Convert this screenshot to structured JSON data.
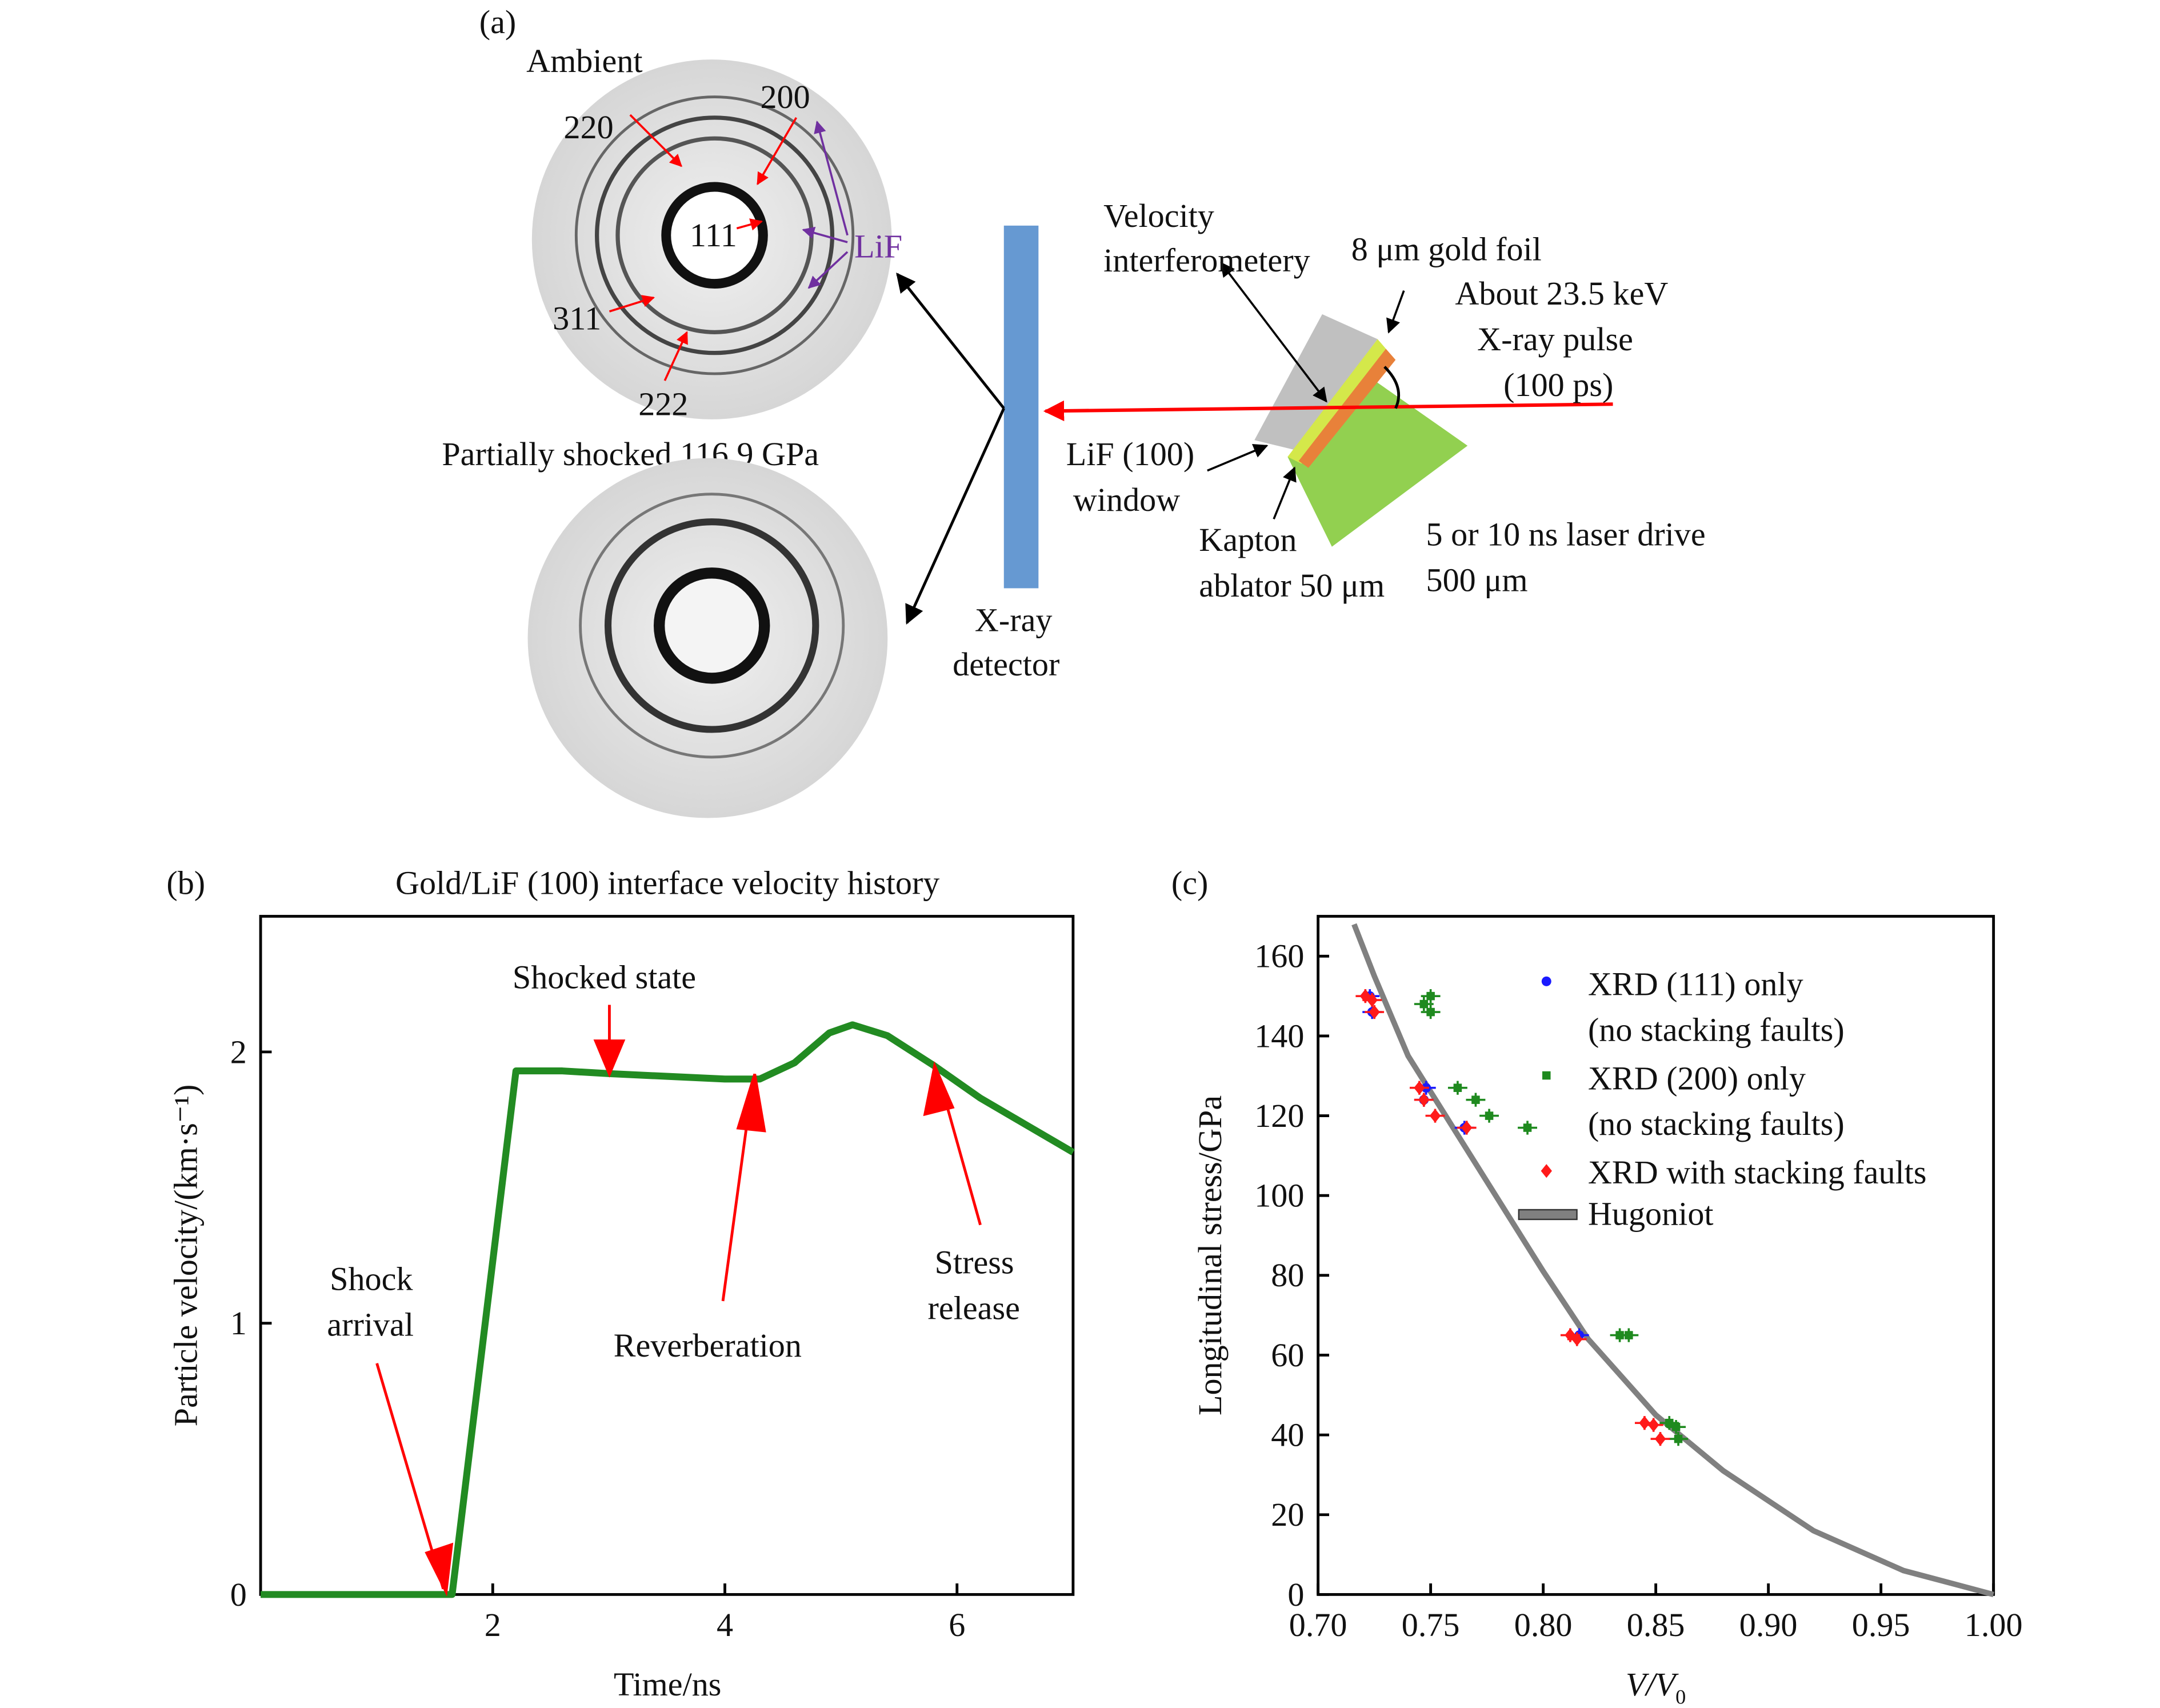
{
  "panel_a": {
    "label": "(a)",
    "ambient_label": "Ambient",
    "shocked_label": "Partially shocked 116.9 GPa",
    "peaks": [
      "220",
      "200",
      "111",
      "311",
      "222"
    ],
    "lif_label": "LiF",
    "detector_label": [
      "X-ray",
      "detector"
    ],
    "velocimetry_label": [
      "Velocity",
      "interferometery"
    ],
    "gold_label": "8 μm gold foil",
    "xray_label": [
      "About 23.5 keV",
      "X-ray pulse",
      "(100 ps)"
    ],
    "window_label": [
      "LiF (100)",
      "window"
    ],
    "kapton_label": [
      "Kapton",
      "ablator 50 μm"
    ],
    "laser_label": [
      "5 or 10 ns laser drive",
      "500 μm"
    ],
    "colors": {
      "detector": "#6699d2",
      "lif": "#c0c0c0",
      "gold": "#d4e84a",
      "kapton": "#e8813a",
      "laser": "#92d050",
      "xray": "#ff0000",
      "lif_arrow": "#7030a0"
    }
  },
  "chart_data": [
    {
      "panel": "(b)",
      "type": "line",
      "title": "Gold/LiF (100) interface velocity history",
      "xlabel": "Time/ns",
      "ylabel": "Particle velocity/(km·s⁻¹)",
      "xlim": [
        0,
        7
      ],
      "ylim": [
        0,
        2.5
      ],
      "xticks": [
        "2",
        "4",
        "6"
      ],
      "yticks": [
        "0",
        "1",
        "2"
      ],
      "series": [
        {
          "name": "velocity",
          "color": "#228b22",
          "x": [
            0,
            1.65,
            2.2,
            2.6,
            3.0,
            3.5,
            4.0,
            4.3,
            4.6,
            4.9,
            5.1,
            5.4,
            5.8,
            6.2,
            6.6,
            7.0
          ],
          "y": [
            0,
            0,
            1.93,
            1.93,
            1.92,
            1.91,
            1.9,
            1.9,
            1.96,
            2.07,
            2.1,
            2.06,
            1.95,
            1.83,
            1.73,
            1.63
          ]
        }
      ],
      "annotations": [
        {
          "text": [
            "Shocked state"
          ],
          "at": [
            3.0,
            1.92
          ]
        },
        {
          "text": [
            "Shock",
            "arrival"
          ],
          "at": [
            1.6,
            0
          ]
        },
        {
          "text": [
            "Reverberation"
          ],
          "at": [
            4.3,
            1.9
          ]
        },
        {
          "text": [
            "Stress",
            "release"
          ],
          "at": [
            5.9,
            1.92
          ]
        }
      ]
    },
    {
      "panel": "(c)",
      "type": "scatter",
      "xlabel": "V/V",
      "xlabel_sub": "0",
      "ylabel": "Longitudinal stress/GPa",
      "xlim": [
        0.7,
        1.0
      ],
      "ylim": [
        0,
        170
      ],
      "xticks": [
        "0.70",
        "0.75",
        "0.80",
        "0.85",
        "0.90",
        "0.95",
        "1.00"
      ],
      "yticks": [
        "0",
        "20",
        "40",
        "60",
        "80",
        "100",
        "120",
        "140",
        "160"
      ],
      "legend": [
        {
          "text": [
            "XRD (111) only",
            "(no stacking faults)"
          ],
          "color": "#1a1aff",
          "marker": "circle"
        },
        {
          "text": [
            "XRD (200) only",
            "(no stacking faults)"
          ],
          "color": "#1f8a1f",
          "marker": "square"
        },
        {
          "text": [
            "XRD with stacking faults"
          ],
          "color": "#ff1a1a",
          "marker": "diamond"
        },
        {
          "text": [
            "Hugoniot"
          ],
          "color": "#808080",
          "marker": "line"
        }
      ],
      "series": [
        {
          "name": "XRD (111) only",
          "color": "#1a1aff",
          "x": [
            0.723,
            0.724,
            0.748,
            0.747,
            0.765,
            0.816
          ],
          "y": [
            150,
            146,
            127,
            124,
            117,
            65
          ]
        },
        {
          "name": "XRD (200) only",
          "color": "#1f8a1f",
          "x": [
            0.747,
            0.75,
            0.75,
            0.762,
            0.77,
            0.776,
            0.793,
            0.834,
            0.838,
            0.856,
            0.859,
            0.86
          ],
          "y": [
            148,
            150,
            146,
            127,
            124,
            120,
            117,
            65,
            65,
            43,
            42,
            39
          ]
        },
        {
          "name": "XRD with stacking faults",
          "color": "#ff1a1a",
          "x": [
            0.721,
            0.725,
            0.724,
            0.745,
            0.747,
            0.752,
            0.766,
            0.812,
            0.815,
            0.845,
            0.849,
            0.852
          ],
          "y": [
            150,
            146,
            149,
            127,
            124,
            120,
            117,
            65,
            64,
            43,
            42.5,
            39
          ]
        },
        {
          "name": "Hugoniot",
          "color": "#808080",
          "x": [
            0.716,
            0.725,
            0.74,
            0.76,
            0.78,
            0.8,
            0.82,
            0.85,
            0.88,
            0.92,
            0.96,
            1.0
          ],
          "y": [
            168,
            155,
            135,
            117,
            99,
            81,
            64,
            45,
            31,
            16,
            6,
            0
          ]
        }
      ]
    }
  ]
}
